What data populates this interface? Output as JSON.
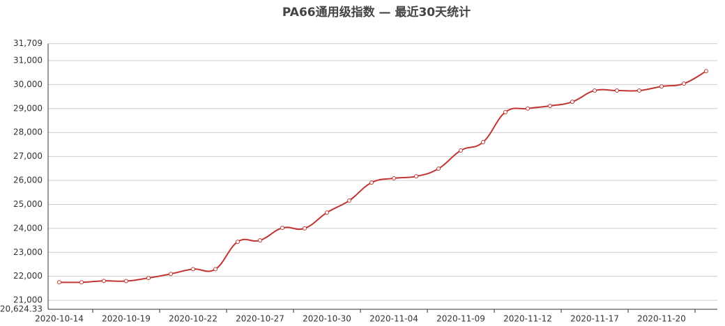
{
  "chart_data": {
    "type": "line",
    "title": "PA66通用级指数 — 最近30天统计",
    "categories": [
      "2020-10-14",
      null,
      null,
      "2020-10-19",
      null,
      null,
      "2020-10-22",
      null,
      null,
      "2020-10-27",
      null,
      null,
      "2020-10-30",
      null,
      null,
      "2020-11-04",
      null,
      null,
      "2020-11-09",
      null,
      null,
      "2020-11-12",
      null,
      null,
      "2020-11-17",
      null,
      null,
      "2020-11-20",
      null,
      null
    ],
    "series": [
      {
        "color": "#c23531",
        "values": [
          21750,
          21750,
          21810,
          21800,
          21930,
          22100,
          22300,
          22300,
          23440,
          23500,
          24020,
          24000,
          24660,
          25160,
          25910,
          26090,
          26170,
          26490,
          27250,
          27600,
          28850,
          29000,
          29110,
          29280,
          29750,
          29750,
          29750,
          29920,
          30040,
          30560
        ]
      }
    ],
    "ylim": [
      20624.33,
      31709
    ],
    "yticks": [
      {
        "value": 20624.33,
        "label": "20,624.33"
      },
      {
        "value": 21000,
        "label": "21,000"
      },
      {
        "value": 22000,
        "label": "22,000"
      },
      {
        "value": 23000,
        "label": "23,000"
      },
      {
        "value": 24000,
        "label": "24,000"
      },
      {
        "value": 25000,
        "label": "25,000"
      },
      {
        "value": 26000,
        "label": "26,000"
      },
      {
        "value": 27000,
        "label": "27,000"
      },
      {
        "value": 28000,
        "label": "28,000"
      },
      {
        "value": 29000,
        "label": "29,000"
      },
      {
        "value": 30000,
        "label": "30,000"
      },
      {
        "value": 31000,
        "label": "31,000"
      },
      {
        "value": 31709,
        "label": "31,709"
      }
    ],
    "grid": true
  }
}
